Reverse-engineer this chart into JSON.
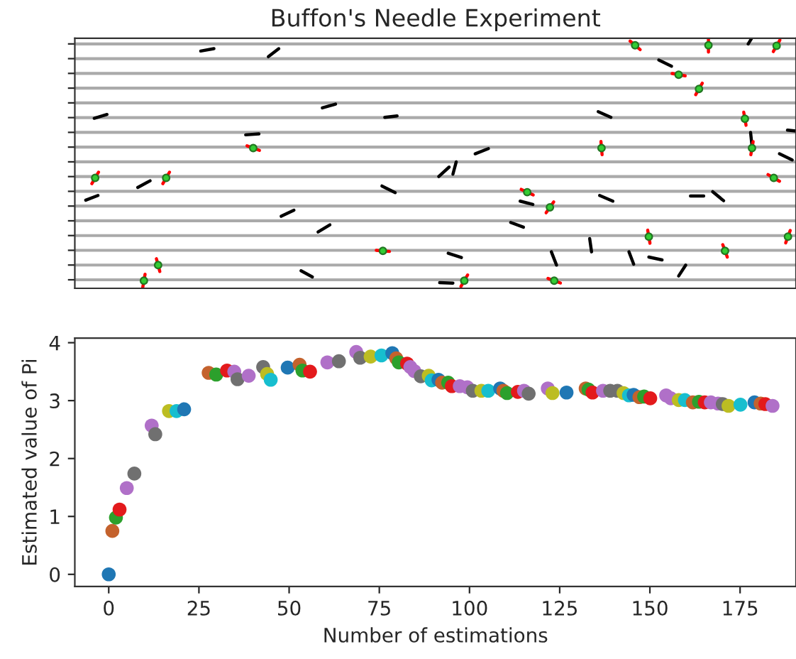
{
  "chart_data": [
    {
      "type": "other",
      "title": "Buffon's Needle Experiment"
    },
    {
      "type": "scatter",
      "xlabel": "Number of estimations",
      "ylabel": "Estimated value of Pi",
      "xlim": [
        -9.4,
        190.5
      ],
      "ylim": [
        -0.21,
        4.08
      ],
      "xticks": [
        0,
        25,
        50,
        75,
        100,
        125,
        150,
        175
      ],
      "yticks": [
        0,
        1,
        2,
        3,
        4
      ],
      "grid": false,
      "marker": "circle",
      "x": [
        0,
        1,
        2,
        3,
        5,
        7.1,
        11.9,
        12.9,
        16.7,
        18.8,
        20.9,
        27.7,
        29.8,
        32.8,
        34.8,
        35.7,
        38.8,
        42.8,
        43.9,
        44.9,
        49.6,
        52.9,
        53.7,
        55.8,
        60.6,
        63.8,
        68.6,
        69.7,
        72.6,
        75.6,
        78.6,
        79.7,
        80.4,
        82.7,
        83.6,
        84.7,
        86.5,
        88.7,
        89.5,
        91.4,
        92.4,
        94.1,
        95.1,
        97.3,
        99.4,
        100.9,
        103.3,
        105.2,
        108.5,
        109.4,
        110.4,
        113.4,
        115.1,
        116.4,
        121.7,
        123,
        126.9,
        132.2,
        133,
        134.1,
        137,
        139,
        141,
        142.7,
        144.2,
        145.5,
        147.1,
        148.4,
        150.1,
        154.5,
        155.8,
        158,
        159.7,
        161.9,
        163.6,
        165.2,
        166.9,
        168.9,
        170.2,
        171.8,
        175.1,
        179,
        180.7,
        182,
        184
      ],
      "values": [
        0,
        0.75,
        0.98,
        1.12,
        1.49,
        1.74,
        2.57,
        2.42,
        2.82,
        2.82,
        2.85,
        3.48,
        3.45,
        3.52,
        3.5,
        3.37,
        3.43,
        3.58,
        3.46,
        3.36,
        3.57,
        3.62,
        3.52,
        3.5,
        3.66,
        3.68,
        3.84,
        3.74,
        3.76,
        3.78,
        3.82,
        3.73,
        3.66,
        3.64,
        3.58,
        3.51,
        3.42,
        3.43,
        3.35,
        3.36,
        3.31,
        3.31,
        3.25,
        3.25,
        3.23,
        3.17,
        3.17,
        3.17,
        3.21,
        3.17,
        3.13,
        3.15,
        3.17,
        3.12,
        3.21,
        3.13,
        3.14,
        3.21,
        3.19,
        3.14,
        3.17,
        3.17,
        3.17,
        3.13,
        3.09,
        3.1,
        3.06,
        3.07,
        3.04,
        3.09,
        3.04,
        3.01,
        3.01,
        2.97,
        2.98,
        2.97,
        2.97,
        2.95,
        2.94,
        2.91,
        2.93,
        2.97,
        2.95,
        2.94,
        2.91
      ],
      "colors": [
        "#1f77b4",
        "#c4622d",
        "#2ca02c",
        "#e31a1c",
        "#b070c8",
        "#707070",
        "#b070c8",
        "#707070",
        "#bcbd22",
        "#17becf",
        "#1f77b4",
        "#c4622d",
        "#2ca02c",
        "#e31a1c",
        "#b070c8",
        "#707070",
        "#b070c8",
        "#707070",
        "#bcbd22",
        "#17becf",
        "#1f77b4",
        "#c4622d",
        "#2ca02c",
        "#e31a1c",
        "#b070c8",
        "#707070",
        "#b070c8",
        "#707070",
        "#bcbd22",
        "#17becf",
        "#1f77b4",
        "#c4622d",
        "#2ca02c",
        "#e31a1c",
        "#b070c8",
        "#b070c8",
        "#707070",
        "#bcbd22",
        "#17becf",
        "#1f77b4",
        "#c4622d",
        "#2ca02c",
        "#e31a1c",
        "#b070c8",
        "#b070c8",
        "#707070",
        "#bcbd22",
        "#17becf",
        "#1f77b4",
        "#c4622d",
        "#2ca02c",
        "#e31a1c",
        "#b070c8",
        "#707070",
        "#b070c8",
        "#bcbd22",
        "#1f77b4",
        "#c4622d",
        "#2ca02c",
        "#e31a1c",
        "#b070c8",
        "#707070",
        "#707070",
        "#bcbd22",
        "#17becf",
        "#1f77b4",
        "#c4622d",
        "#2ca02c",
        "#e31a1c",
        "#b070c8",
        "#b070c8",
        "#bcbd22",
        "#17becf",
        "#c4622d",
        "#2ca02c",
        "#e31a1c",
        "#b070c8",
        "#b070c8",
        "#707070",
        "#bcbd22",
        "#17becf",
        "#1f77b4",
        "#c4622d",
        "#e31a1c",
        "#b070c8"
      ]
    }
  ]
}
